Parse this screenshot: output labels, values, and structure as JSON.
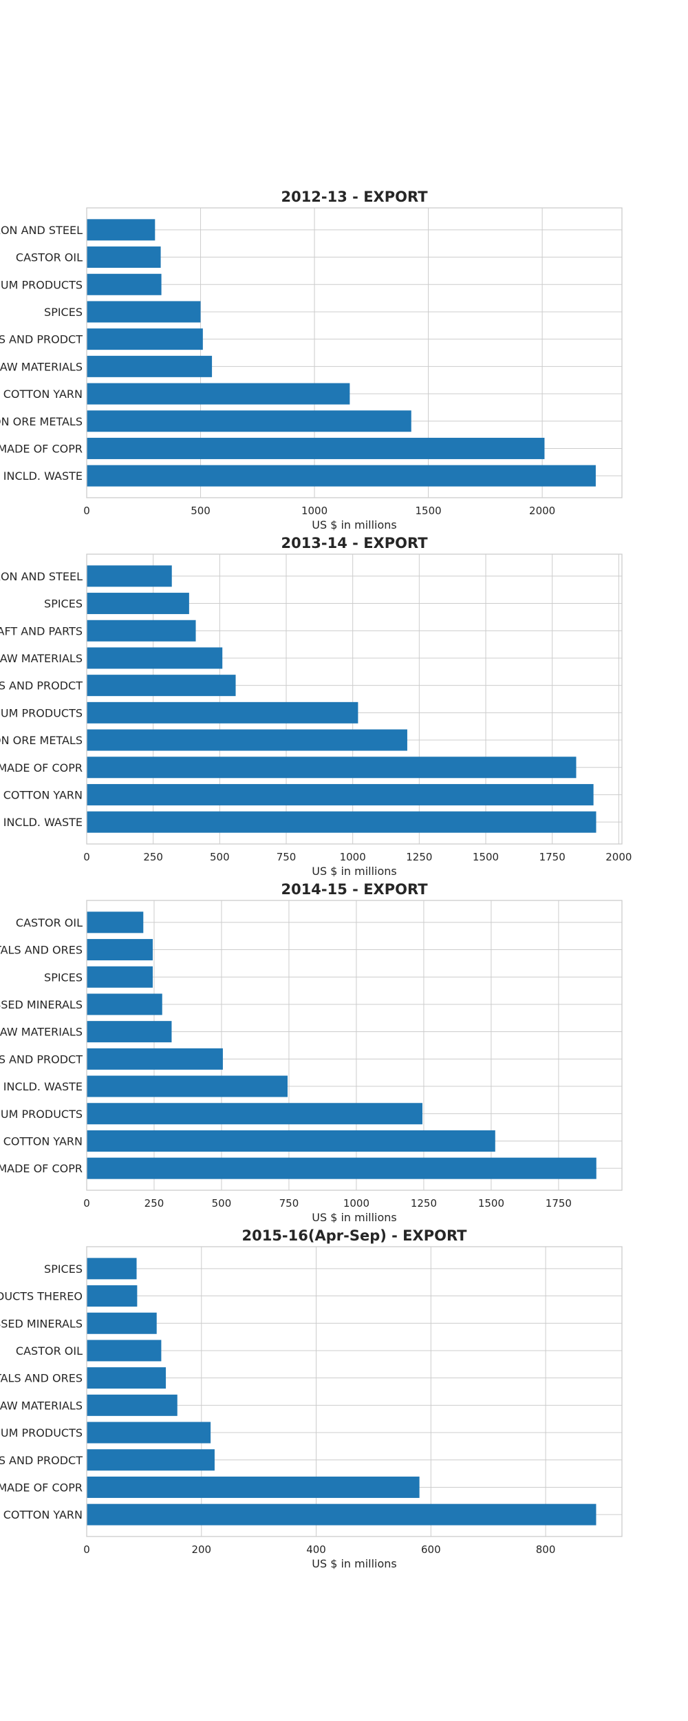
{
  "bar_color": "#1f77b4",
  "chart_data": [
    {
      "type": "bar",
      "orientation": "horizontal",
      "title": "2012-13 - EXPORT",
      "xlabel": "US $ in millions",
      "categories": [
        "PRODUCTS OF IRON AND STEEL",
        "CASTOR OIL",
        "PETROLEUM PRODUCTS",
        "SPICES",
        "RMG OF COTTON INCL ACCESSORIES AND PRODCT",
        "OTHER CEREALS AND RAW MATERIALS",
        "COTTON YARN",
        "IRON ORE AND IRON ORE METALS",
        "COPPER AND PRODUCTS MADE OF COPR",
        "COTTON RAW INCLD. WASTE"
      ],
      "category_labels": [
        "IRON AND STEEL",
        "CASTOR OIL",
        "PETROLEUM PRODUCTS",
        "SPICES",
        "ACCESSORIES AND PRODCT",
        "OTHER CEREALS AND RAW MATERIALS",
        "COTTON YARN",
        "IRON ORE AND IRON ORE METALS",
        "COPPER AND PRODUCTS MADE OF COPR",
        "COTTON RAW INCLD. WASTE"
      ],
      "values": [
        300,
        325,
        328,
        500,
        510,
        550,
        1155,
        1425,
        2010,
        2235
      ],
      "xlim": [
        0,
        2350
      ],
      "xticks": [
        0,
        500,
        1000,
        1500,
        2000
      ],
      "grid": true
    },
    {
      "type": "bar",
      "orientation": "horizontal",
      "title": "2013-14 - EXPORT",
      "xlabel": "US $ in millions",
      "category_labels": [
        "IRON AND STEEL",
        "SPICES",
        "AIRCRAFT AND PARTS",
        "OTHER CEREALS AND RAW MATERIALS",
        "ACCESSORIES AND PRODCT",
        "PETROLEUM PRODUCTS",
        "IRON ORE AND IRON ORE METALS",
        "COPPER AND PRODUCTS MADE OF COPR",
        "COTTON YARN",
        "COTTON RAW INCLD. WASTE"
      ],
      "values": [
        320,
        385,
        410,
        510,
        560,
        1020,
        1205,
        1840,
        1905,
        1915
      ],
      "xlim": [
        0,
        2012
      ],
      "xticks": [
        0,
        250,
        500,
        750,
        1000,
        1250,
        1500,
        1750,
        2000
      ],
      "grid": true
    },
    {
      "type": "bar",
      "orientation": "horizontal",
      "title": "2014-15 - EXPORT",
      "xlabel": "US $ in millions",
      "category_labels": [
        "CASTOR OIL",
        "METALS AND ORES",
        "SPICES",
        "PROCESSED MINERALS",
        "OTHER CEREALS AND RAW MATERIALS",
        "ACCESSORIES AND PRODCT",
        "COTTON RAW INCLD. WASTE",
        "PETROLEUM PRODUCTS",
        "COTTON YARN",
        "COPPER AND PRODUCTS MADE OF COPR"
      ],
      "values": [
        210,
        245,
        245,
        280,
        315,
        505,
        745,
        1245,
        1515,
        1890
      ],
      "xlim": [
        0,
        1985
      ],
      "xticks": [
        0,
        250,
        500,
        750,
        1000,
        1250,
        1500,
        1750
      ],
      "grid": true
    },
    {
      "type": "bar",
      "orientation": "horizontal",
      "title": "2015-16(Apr-Sep) - EXPORT",
      "xlabel": "US $ in millions",
      "category_labels": [
        "SPICES",
        "PRODUCTS THEREO",
        "PROCESSED MINERALS",
        "CASTOR OIL",
        "METALS AND ORES",
        "OTHER CEREALS AND RAW MATERIALS",
        "PETROLEUM PRODUCTS",
        "ACCESSORIES AND PRODCT",
        "COPPER AND PRODUCTS MADE OF COPR",
        "COTTON YARN"
      ],
      "values": [
        87,
        88,
        122,
        130,
        138,
        158,
        216,
        223,
        580,
        888
      ],
      "xlim": [
        0,
        933
      ],
      "xticks": [
        0,
        200,
        400,
        600,
        800
      ],
      "grid": true
    }
  ]
}
